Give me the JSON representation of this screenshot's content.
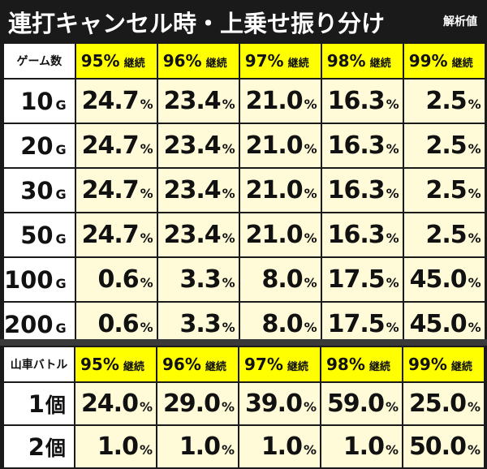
{
  "title": "連打キャンセル時・上乗せ振り分け",
  "note": "解析値",
  "table1": {
    "corner": "ゲーム数",
    "headers": [
      {
        "pct": "95%",
        "label": "継続"
      },
      {
        "pct": "96%",
        "label": "継続"
      },
      {
        "pct": "97%",
        "label": "継続"
      },
      {
        "pct": "98%",
        "label": "継続"
      },
      {
        "pct": "99%",
        "label": "継続"
      }
    ],
    "rows": [
      {
        "num": "10",
        "suffix": "G",
        "values": [
          "24.7",
          "23.4",
          "21.0",
          "16.3",
          "2.5"
        ]
      },
      {
        "num": "20",
        "suffix": "G",
        "values": [
          "24.7",
          "23.4",
          "21.0",
          "16.3",
          "2.5"
        ]
      },
      {
        "num": "30",
        "suffix": "G",
        "values": [
          "24.7",
          "23.4",
          "21.0",
          "16.3",
          "2.5"
        ]
      },
      {
        "num": "50",
        "suffix": "G",
        "values": [
          "24.7",
          "23.4",
          "21.0",
          "16.3",
          "2.5"
        ]
      },
      {
        "num": "100",
        "suffix": "G",
        "values": [
          "0.6",
          "3.3",
          "8.0",
          "17.5",
          "45.0"
        ]
      },
      {
        "num": "200",
        "suffix": "G",
        "values": [
          "0.6",
          "3.3",
          "8.0",
          "17.5",
          "45.0"
        ]
      }
    ]
  },
  "table2": {
    "corner": "山車バトル",
    "headers": [
      {
        "pct": "95%",
        "label": "継続"
      },
      {
        "pct": "96%",
        "label": "継続"
      },
      {
        "pct": "97%",
        "label": "継続"
      },
      {
        "pct": "98%",
        "label": "継続"
      },
      {
        "pct": "99%",
        "label": "継続"
      }
    ],
    "rows": [
      {
        "num": "1",
        "suffix": "個",
        "values": [
          "24.0",
          "29.0",
          "39.0",
          "59.0",
          "25.0"
        ]
      },
      {
        "num": "2",
        "suffix": "個",
        "values": [
          "1.0",
          "1.0",
          "1.0",
          "1.0",
          "50.0"
        ]
      }
    ]
  },
  "percent_sign": "%",
  "colors": {
    "header_yellow": "#ffff00",
    "cell_cream": "#fffbd9",
    "background": "#1a1a1a"
  }
}
